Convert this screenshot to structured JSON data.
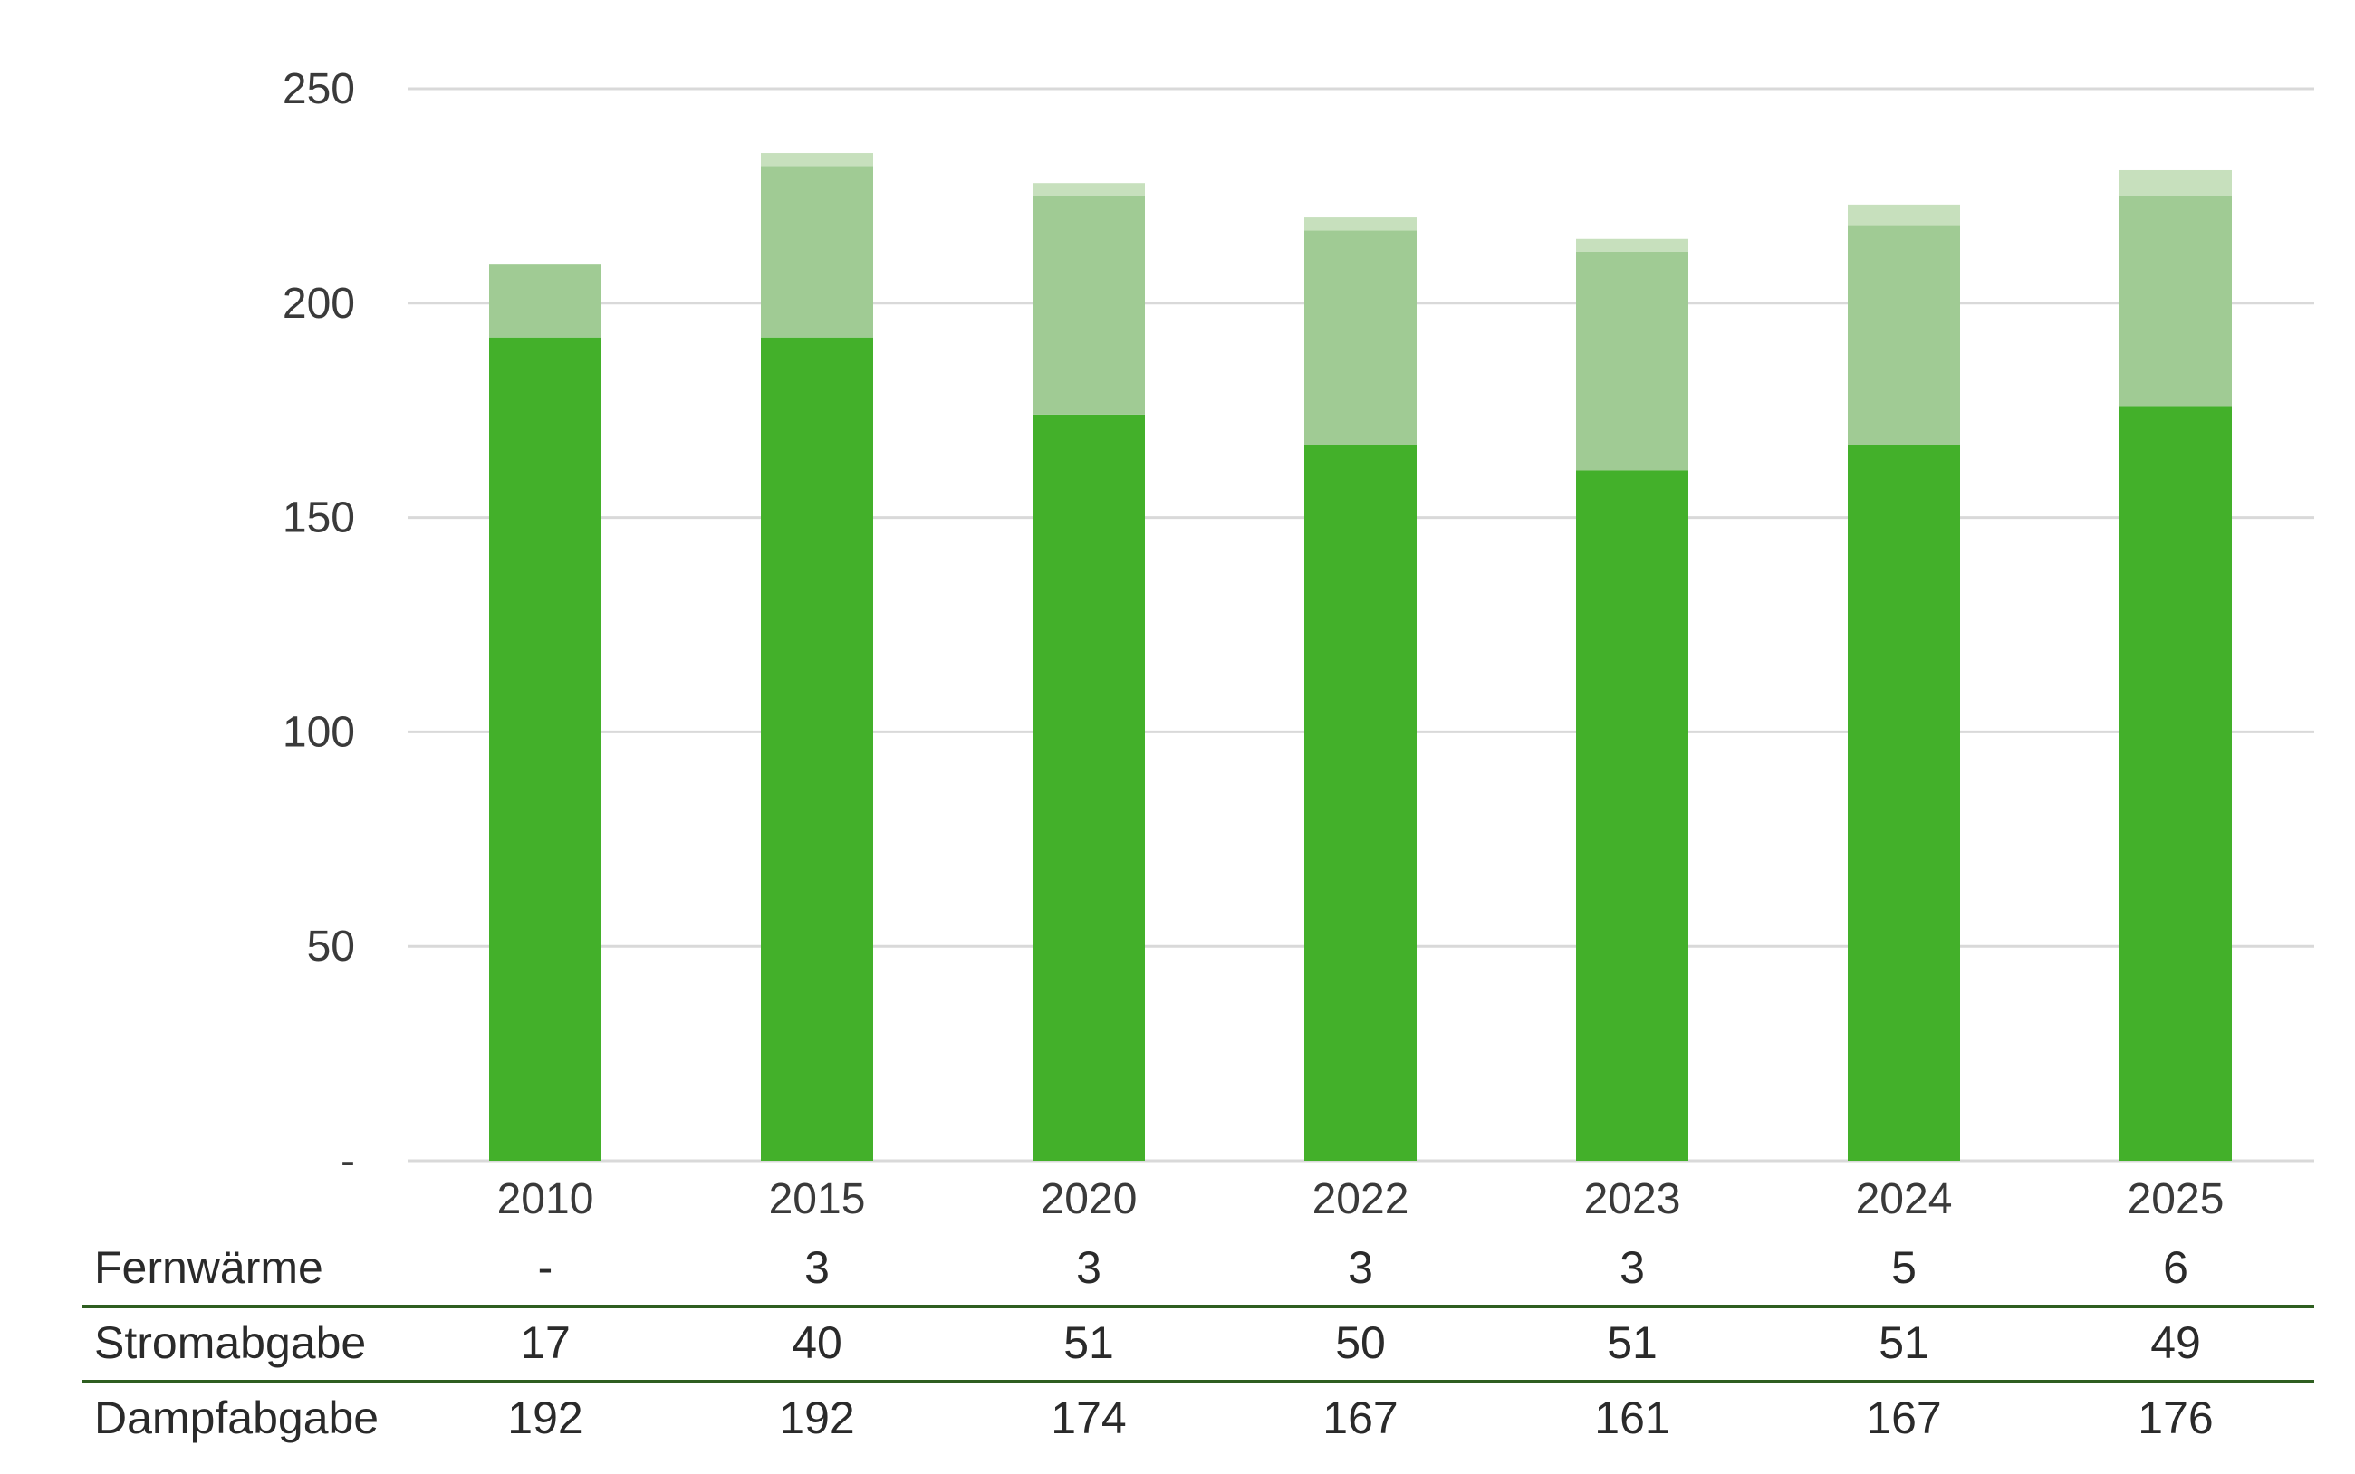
{
  "chart_data": {
    "type": "bar",
    "stacked": true,
    "categories": [
      "2010",
      "2015",
      "2020",
      "2022",
      "2023",
      "2024",
      "2025"
    ],
    "series": [
      {
        "name": "Dampfabgabe",
        "values": [
          192,
          192,
          174,
          167,
          161,
          167,
          176
        ],
        "color": "#43b02a"
      },
      {
        "name": "Stromabgabe",
        "values": [
          17,
          40,
          51,
          50,
          51,
          51,
          49
        ],
        "color": "#a0cb94"
      },
      {
        "name": "Fernwärme",
        "values": [
          0,
          3,
          3,
          3,
          3,
          5,
          6
        ],
        "color": "#c7e0bd"
      }
    ],
    "ylim": [
      0,
      250
    ],
    "yticks": [
      0,
      50,
      100,
      150,
      200,
      250
    ],
    "ytick_labels": [
      "-",
      "50",
      "100",
      "150",
      "200",
      "250"
    ],
    "grid": true,
    "gridline_color": "#d9d9d9",
    "separator_color": "#2e5e20",
    "xlabel": "",
    "ylabel": "",
    "title": "",
    "data_table": {
      "rows": [
        {
          "label": "Fernwärme",
          "cells": [
            "-",
            "3",
            "3",
            "3",
            "3",
            "5",
            "6"
          ]
        },
        {
          "label": "Stromabgabe",
          "cells": [
            "17",
            "40",
            "51",
            "50",
            "51",
            "51",
            "49"
          ]
        },
        {
          "label": "Dampfabgabe",
          "cells": [
            "192",
            "192",
            "174",
            "167",
            "161",
            "167",
            "176"
          ]
        }
      ]
    }
  }
}
